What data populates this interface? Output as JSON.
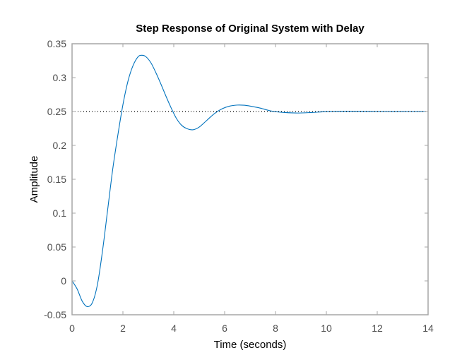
{
  "chart_data": {
    "type": "line",
    "title": "Step Response of Original System with Delay",
    "xlabel": "Time (seconds)",
    "ylabel": "Amplitude",
    "xlim": [
      0,
      14
    ],
    "ylim": [
      -0.05,
      0.35
    ],
    "xticks": [
      0,
      2,
      4,
      6,
      8,
      10,
      12,
      14
    ],
    "xtick_labels": [
      "0",
      "2",
      "4",
      "6",
      "8",
      "10",
      "12",
      "14"
    ],
    "yticks": [
      -0.05,
      0,
      0.05,
      0.1,
      0.15,
      0.2,
      0.25,
      0.3,
      0.35
    ],
    "ytick_labels": [
      "-0.05",
      "0",
      "0.05",
      "0.1",
      "0.15",
      "0.2",
      "0.25",
      "0.3",
      "0.35"
    ],
    "grid": false,
    "legend": null,
    "series": [
      {
        "name": "Step response",
        "color": "#0072bd",
        "style": "solid",
        "x": [
          0,
          0.2,
          0.4,
          0.6,
          0.8,
          1.0,
          1.2,
          1.4,
          1.6,
          1.8,
          2.0,
          2.2,
          2.4,
          2.6,
          2.75,
          2.9,
          3.1,
          3.3,
          3.5,
          3.7,
          3.9,
          4.1,
          4.3,
          4.5,
          4.75,
          5.0,
          5.3,
          5.6,
          5.9,
          6.2,
          6.5,
          6.75,
          7.0,
          7.4,
          7.8,
          8.2,
          8.8,
          9.4,
          10.0,
          10.8,
          11.6,
          12.4,
          13.2,
          14.0
        ],
        "y": [
          0,
          -0.012,
          -0.03,
          -0.038,
          -0.032,
          -0.005,
          0.045,
          0.105,
          0.165,
          0.215,
          0.26,
          0.295,
          0.318,
          0.331,
          0.333,
          0.331,
          0.322,
          0.307,
          0.29,
          0.272,
          0.255,
          0.24,
          0.23,
          0.225,
          0.223,
          0.227,
          0.237,
          0.247,
          0.254,
          0.258,
          0.2595,
          0.2593,
          0.258,
          0.255,
          0.251,
          0.249,
          0.2478,
          0.2485,
          0.2498,
          0.2505,
          0.2502,
          0.25,
          0.25,
          0.25
        ]
      },
      {
        "name": "Steady-state",
        "color": "#000000",
        "style": "dotted",
        "x": [
          0,
          14
        ],
        "y": [
          0.25,
          0.25
        ]
      }
    ]
  }
}
